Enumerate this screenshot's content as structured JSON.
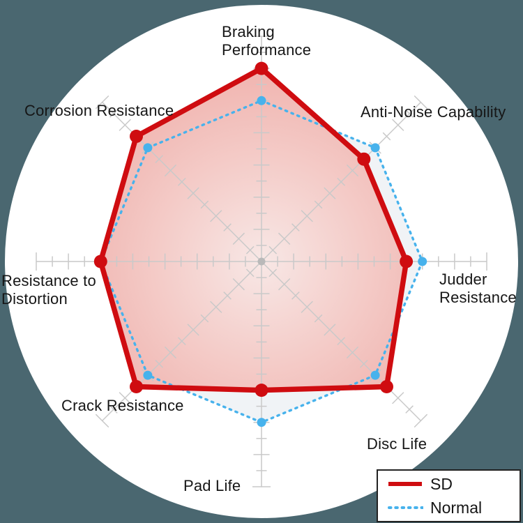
{
  "colors": {
    "background": "#4A6770",
    "panel": "#ffffff",
    "grid": "#c9c9c9",
    "center_dot": "#b9b9b9",
    "label_text": "#161616",
    "sd_fill_center": "#f8e7e5",
    "sd_fill_mid": "#f4c9c5",
    "sd_fill_edge": "#f0b1ac",
    "normal_fill": "#edf1f4",
    "legend_border": "#222222"
  },
  "chart_data": {
    "type": "radar",
    "axes": [
      "Braking Performance",
      "Anti-Noise Capability",
      "Judder Resistance",
      "Disc Life",
      "Pad Life",
      "Crack Resistance",
      "Resistance to Distortion",
      "Corrosion Resistance"
    ],
    "series": [
      {
        "name": "SD",
        "values": [
          6.0,
          4.5,
          4.5,
          5.5,
          4.0,
          5.5,
          5.0,
          5.5
        ],
        "color": "#cf0c10",
        "style": "solid"
      },
      {
        "name": "Normal",
        "values": [
          5.0,
          5.0,
          5.0,
          5.0,
          5.0,
          5.0,
          5.0,
          5.0
        ],
        "color": "#47b2ec",
        "style": "dotted"
      }
    ],
    "scale": {
      "min": 0,
      "max": 7,
      "tick_step": 0.5,
      "major_step": 1
    },
    "layout": {
      "start_angle_deg": 90,
      "direction": "clockwise",
      "grid": "ticks-on-spokes",
      "legend_position": "bottom-right"
    }
  },
  "axis_labels": {
    "braking": "Braking\nPerformance",
    "antinoise": "Anti-Noise Capability",
    "judder": "Judder\nResistance",
    "disclife": "Disc Life",
    "padlife": "Pad Life",
    "crack": "Crack Resistance",
    "distortion": "Resistance to\nDistortion",
    "corrosion": "Corrosion Resistance"
  }
}
